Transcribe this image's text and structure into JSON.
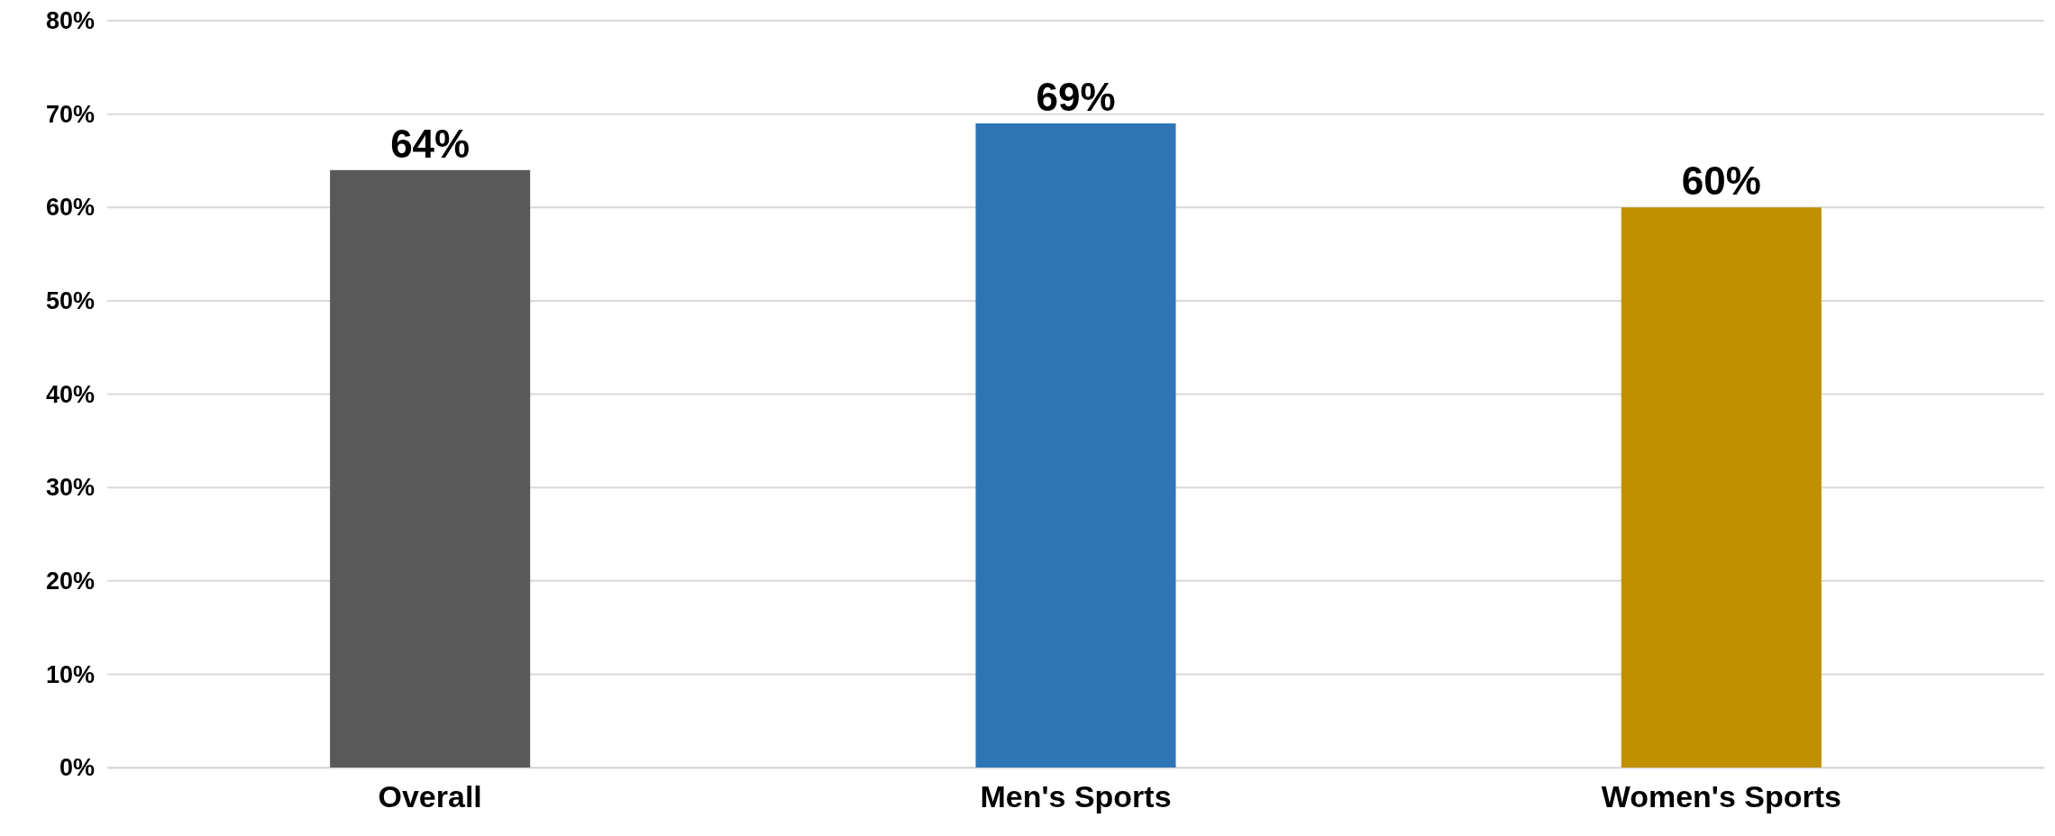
{
  "chart_data": {
    "type": "bar",
    "categories": [
      "Overall",
      "Men's Sports",
      "Women's Sports"
    ],
    "values": [
      64,
      69,
      60
    ],
    "colors": [
      "#595959",
      "#2e75b6",
      "#bf9000"
    ],
    "value_labels": [
      "64%",
      "69%",
      "60%"
    ],
    "ylim": [
      0,
      80
    ],
    "yticks": [
      {
        "value": 0,
        "label": "0%"
      },
      {
        "value": 10,
        "label": "10%"
      },
      {
        "value": 20,
        "label": "20%"
      },
      {
        "value": 30,
        "label": "30%"
      },
      {
        "value": 40,
        "label": "40%"
      },
      {
        "value": 50,
        "label": "50%"
      },
      {
        "value": 60,
        "label": "60%"
      },
      {
        "value": 70,
        "label": "70%"
      },
      {
        "value": 80,
        "label": "80%"
      }
    ],
    "grid": "y"
  }
}
